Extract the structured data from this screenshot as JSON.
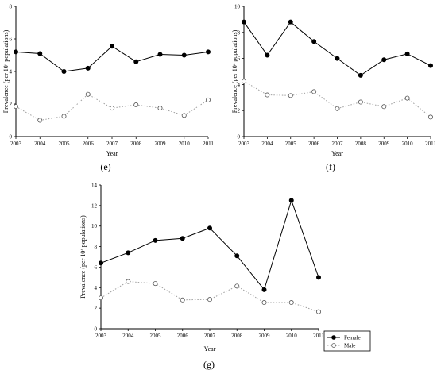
{
  "chart_data": [
    {
      "type": "line",
      "panel_label": "(e)",
      "x": [
        2003,
        2004,
        2005,
        2006,
        2007,
        2008,
        2009,
        2010,
        2011
      ],
      "x_tick_labels": [
        "2003",
        "2004",
        "2005",
        "2006",
        "2007",
        "2008",
        "2009",
        "2010",
        "2011"
      ],
      "xlabel": "Year",
      "ylabel_pre": "Prevalence (per 10",
      "ylabel_sup": "4",
      "ylabel_post": " populations)",
      "ylim": [
        0,
        8
      ],
      "y_ticks": [
        0,
        2,
        4,
        6,
        8
      ],
      "series": [
        {
          "key": "female",
          "values": [
            5.2,
            5.1,
            4.0,
            4.2,
            5.55,
            4.6,
            5.05,
            5.0,
            5.2
          ]
        },
        {
          "key": "male",
          "values": [
            1.85,
            1.0,
            1.25,
            2.6,
            1.75,
            1.95,
            1.75,
            1.3,
            2.25
          ]
        }
      ]
    },
    {
      "type": "line",
      "panel_label": "(f)",
      "x": [
        2003,
        2004,
        2005,
        2006,
        2007,
        2008,
        2009,
        2010,
        2011
      ],
      "x_tick_labels": [
        "2003",
        "2004",
        "2005",
        "2006",
        "2007",
        "2008",
        "2009",
        "2010",
        "2011"
      ],
      "xlabel": "Year",
      "ylabel_pre": "Prevalence (per 10",
      "ylabel_sup": "4",
      "ylabel_post": " populations)",
      "ylim": [
        0,
        10
      ],
      "y_ticks": [
        0,
        2,
        4,
        6,
        8,
        10
      ],
      "series": [
        {
          "key": "female",
          "values": [
            8.8,
            6.25,
            8.8,
            7.3,
            6.0,
            4.7,
            5.9,
            6.35,
            5.45
          ]
        },
        {
          "key": "male",
          "values": [
            4.25,
            3.2,
            3.15,
            3.45,
            2.15,
            2.65,
            2.3,
            2.95,
            1.5
          ]
        }
      ]
    },
    {
      "type": "line",
      "panel_label": "(g)",
      "x": [
        2003,
        2004,
        2005,
        2006,
        2007,
        2008,
        2009,
        2010,
        2011
      ],
      "x_tick_labels": [
        "2003",
        "2004",
        "2005",
        "2006",
        "2007",
        "2008",
        "2009",
        "2010",
        "2011"
      ],
      "xlabel": "Year",
      "ylabel_pre": "Prevalence (per 10",
      "ylabel_sup": "4",
      "ylabel_post": " populations)",
      "ylim": [
        0,
        14
      ],
      "y_ticks": [
        0,
        2,
        4,
        6,
        8,
        10,
        12,
        14
      ],
      "legend": "bottom-right",
      "series": [
        {
          "key": "female",
          "name": "Female",
          "values": [
            6.4,
            7.4,
            8.6,
            8.8,
            9.8,
            7.1,
            3.8,
            12.5,
            5.0
          ]
        },
        {
          "key": "male",
          "name": "Male",
          "values": [
            3.0,
            4.6,
            4.4,
            2.8,
            2.85,
            4.15,
            2.55,
            2.55,
            1.65
          ]
        }
      ]
    }
  ],
  "style": {
    "female_color": "#000000",
    "male_line_color": "#a0a0a0",
    "male_marker_fill": "#ffffff",
    "axis_color": "#000000"
  }
}
